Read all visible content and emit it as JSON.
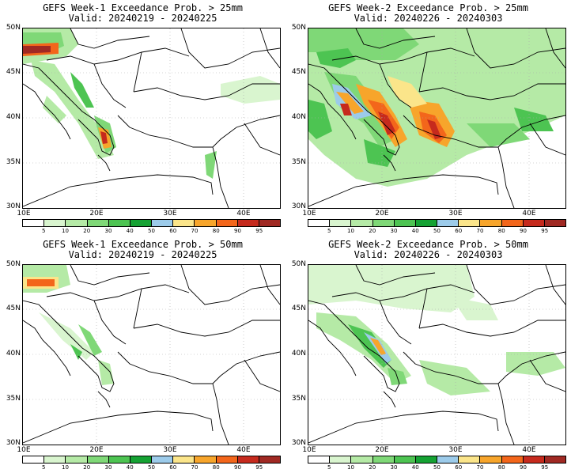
{
  "colorbar": {
    "labels": [
      "5",
      "10",
      "20",
      "30",
      "40",
      "50",
      "60",
      "70",
      "80",
      "90",
      "95"
    ],
    "colors": [
      "#ffffff",
      "#d9f5cf",
      "#b5eaa6",
      "#7fd877",
      "#4dc452",
      "#15a233",
      "#9ccbea",
      "#fbe58a",
      "#f7a52b",
      "#f3661b",
      "#c62a1d",
      "#a02923"
    ]
  },
  "axes": {
    "lat_labels": [
      "50N",
      "45N",
      "40N",
      "35N",
      "30N"
    ],
    "lon_labels": [
      "10E",
      "20E",
      "30E",
      "40E"
    ]
  },
  "panels": [
    {
      "title": "GEFS Week-1 Exceedance Prob. > 25mm",
      "valid": "Valid: 20240219 - 20240225",
      "threshold_mm": 25,
      "period": "Week-1"
    },
    {
      "title": "GEFS Week-2 Exceedance Prob. > 25mm",
      "valid": "Valid: 20240226 - 20240303",
      "threshold_mm": 25,
      "period": "Week-2"
    },
    {
      "title": "GEFS Week-1 Exceedance Prob. > 50mm",
      "valid": "Valid: 20240219 - 20240225",
      "threshold_mm": 50,
      "period": "Week-1"
    },
    {
      "title": "GEFS Week-2 Exceedance Prob. > 50mm",
      "valid": "Valid: 20240226 - 20240303",
      "threshold_mm": 50,
      "period": "Week-2"
    }
  ]
}
